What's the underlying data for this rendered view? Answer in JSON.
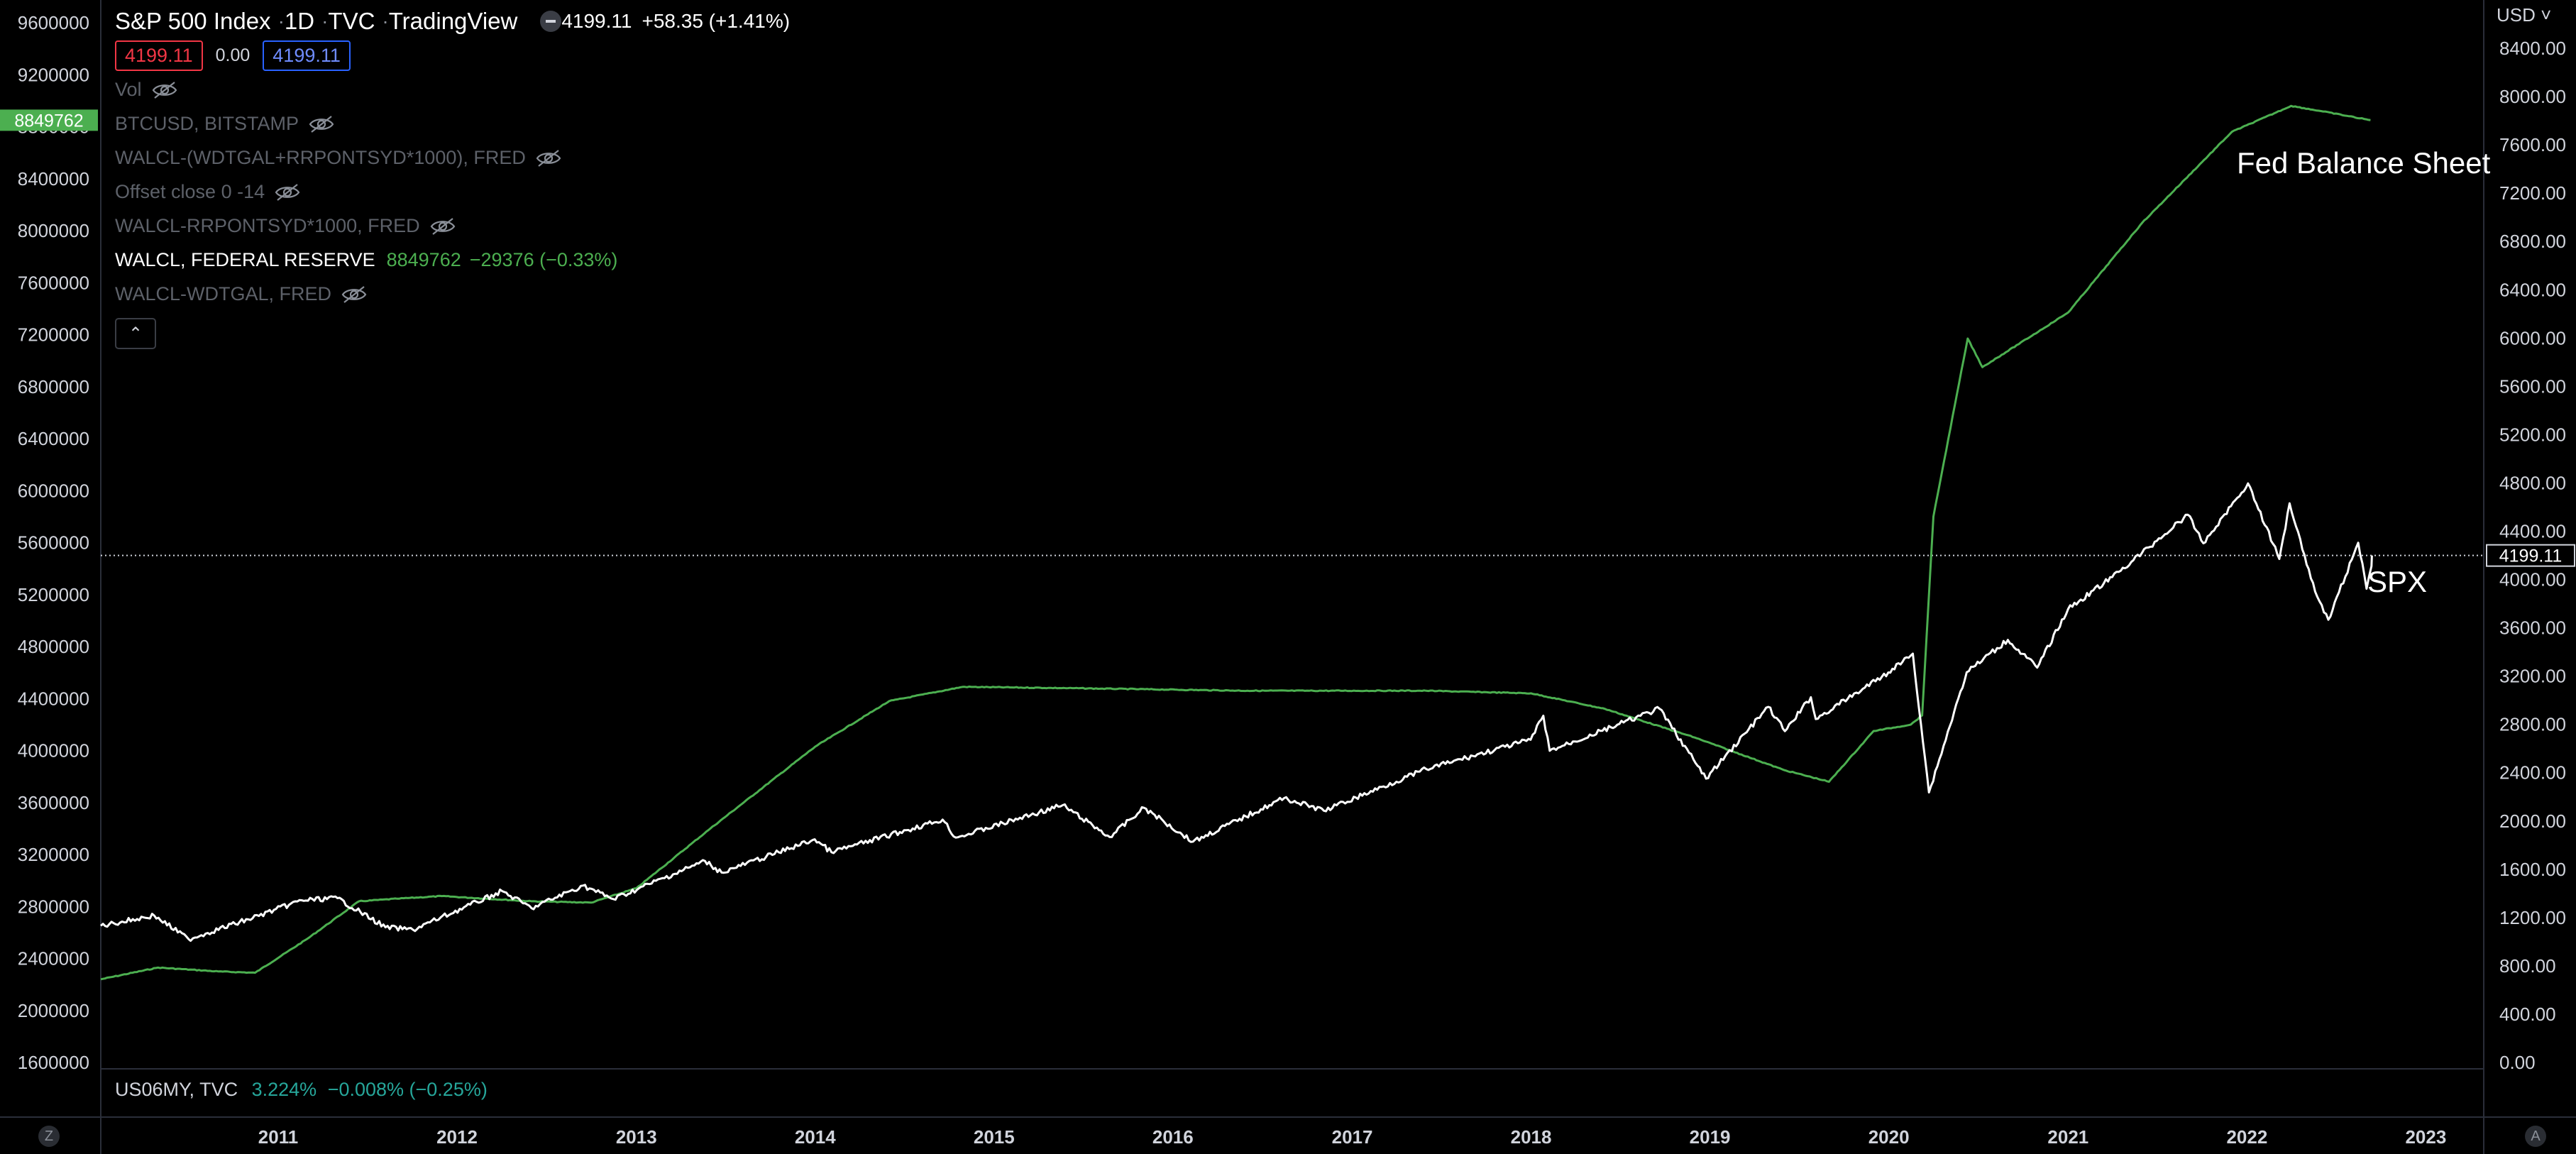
{
  "header": {
    "symbol": "S&P 500 Index",
    "interval": "1D",
    "exchange": "TVC",
    "source": "TradingView",
    "price": "4199.11",
    "change": "+58.35 (+1.41%)",
    "sell_price": "4199.11",
    "spread": "0.00",
    "buy_price": "4199.11",
    "currency": "USD"
  },
  "indicators": [
    {
      "label": "Vol",
      "hidden": true
    },
    {
      "label": "BTCUSD, BITSTAMP",
      "hidden": true
    },
    {
      "label": "WALCL-(WDTGAL+RRPONTSYD*1000), FRED",
      "hidden": true
    },
    {
      "label": "Offset close 0 -14",
      "hidden": true
    },
    {
      "label": "WALCL-RRPONTSYD*1000, FRED",
      "hidden": true
    },
    {
      "label": "WALCL, FEDERAL RESERVE",
      "hidden": false,
      "value": "8849762",
      "change": "−29376 (−0.33%)"
    },
    {
      "label": "WALCL-WDTGAL, FRED",
      "hidden": true
    }
  ],
  "sub_pane": {
    "label": "US06MY, TVC",
    "value": "3.224%",
    "change": "−0.008% (−0.25%)"
  },
  "annotations": {
    "fed": "Fed Balance Sheet",
    "spx": "SPX"
  },
  "corners": {
    "left": "Z",
    "right": "A"
  },
  "colors": {
    "background": "#000000",
    "fed_line": "#4caf50",
    "spx_line": "#ffffff",
    "text": "#d1d4dc",
    "muted": "#5d6169",
    "red": "#f23645",
    "blue": "#2962ff",
    "teal": "#26a69a"
  },
  "chart_data": {
    "type": "line",
    "x_axis": {
      "type": "time",
      "ticks": [
        "2011",
        "2012",
        "2013",
        "2014",
        "2015",
        "2016",
        "2017",
        "2018",
        "2019",
        "2020",
        "2021",
        "2022",
        "2023"
      ]
    },
    "y_left": {
      "range": [
        1600000,
        9600000
      ],
      "ticks": [
        "9600000",
        "9200000",
        "8800000",
        "8400000",
        "8000000",
        "7600000",
        "7200000",
        "6800000",
        "6400000",
        "6000000",
        "5600000",
        "5200000",
        "4800000",
        "4400000",
        "4000000",
        "3600000",
        "3200000",
        "2800000",
        "2400000",
        "2000000",
        "1600000"
      ],
      "last_value_label": "8849762"
    },
    "y_right": {
      "range": [
        0,
        8800
      ],
      "ticks": [
        "8400.00",
        "8000.00",
        "7600.00",
        "7200.00",
        "6800.00",
        "6400.00",
        "6000.00",
        "5600.00",
        "5200.00",
        "4800.00",
        "4400.00",
        "4000.00",
        "3600.00",
        "3200.00",
        "2800.00",
        "2400.00",
        "2000.00",
        "1600.00",
        "1200.00",
        "800.00",
        "400.00",
        "0.00"
      ],
      "last_value_label": "4199.11",
      "last_value": 4199.11
    },
    "series": [
      {
        "name": "WALCL, FEDERAL RESERVE",
        "axis": "left",
        "color": "#4caf50",
        "points": [
          [
            "2010-01-04",
            2240000
          ],
          [
            "2010-05-01",
            2330000
          ],
          [
            "2010-09-01",
            2300000
          ],
          [
            "2010-11-15",
            2290000
          ],
          [
            "2011-03-01",
            2550000
          ],
          [
            "2011-06-15",
            2840000
          ],
          [
            "2011-09-01",
            2860000
          ],
          [
            "2011-12-01",
            2880000
          ],
          [
            "2012-06-01",
            2840000
          ],
          [
            "2012-10-01",
            2830000
          ],
          [
            "2013-01-01",
            2940000
          ],
          [
            "2013-06-01",
            3400000
          ],
          [
            "2014-01-01",
            4030000
          ],
          [
            "2014-06-01",
            4380000
          ],
          [
            "2014-10-29",
            4490000
          ],
          [
            "2015-06-01",
            4480000
          ],
          [
            "2016-06-01",
            4460000
          ],
          [
            "2017-06-01",
            4460000
          ],
          [
            "2018-01-01",
            4440000
          ],
          [
            "2018-06-01",
            4320000
          ],
          [
            "2018-12-01",
            4100000
          ],
          [
            "2019-06-01",
            3850000
          ],
          [
            "2019-09-01",
            3760000
          ],
          [
            "2019-12-01",
            4150000
          ],
          [
            "2020-02-15",
            4200000
          ],
          [
            "2020-03-09",
            4270000
          ],
          [
            "2020-04-01",
            5800000
          ],
          [
            "2020-06-10",
            7170000
          ],
          [
            "2020-07-10",
            6950000
          ],
          [
            "2021-01-01",
            7370000
          ],
          [
            "2021-06-01",
            8060000
          ],
          [
            "2021-12-01",
            8760000
          ],
          [
            "2022-04-01",
            8960000
          ],
          [
            "2022-06-01",
            8920000
          ],
          [
            "2022-09-10",
            8850000
          ]
        ]
      },
      {
        "name": "SPX",
        "axis": "right",
        "color": "#ffffff",
        "points": [
          [
            "2010-01-04",
            1132
          ],
          [
            "2010-04-23",
            1217
          ],
          [
            "2010-07-02",
            1022
          ],
          [
            "2010-11-01",
            1185
          ],
          [
            "2011-02-18",
            1343
          ],
          [
            "2011-05-02",
            1361
          ],
          [
            "2011-08-08",
            1119
          ],
          [
            "2011-10-03",
            1099
          ],
          [
            "2012-04-02",
            1419
          ],
          [
            "2012-06-01",
            1278
          ],
          [
            "2012-09-14",
            1465
          ],
          [
            "2012-11-15",
            1353
          ],
          [
            "2013-05-21",
            1669
          ],
          [
            "2013-06-24",
            1573
          ],
          [
            "2013-12-31",
            1848
          ],
          [
            "2014-02-03",
            1742
          ],
          [
            "2014-09-18",
            2011
          ],
          [
            "2014-10-15",
            1862
          ],
          [
            "2015-05-21",
            2131
          ],
          [
            "2015-08-25",
            1867
          ],
          [
            "2015-11-03",
            2109
          ],
          [
            "2016-02-11",
            1829
          ],
          [
            "2016-08-15",
            2190
          ],
          [
            "2016-11-04",
            2085
          ],
          [
            "2017-06-01",
            2430
          ],
          [
            "2017-12-31",
            2673
          ],
          [
            "2018-01-26",
            2872
          ],
          [
            "2018-02-08",
            2581
          ],
          [
            "2018-09-20",
            2930
          ],
          [
            "2018-12-24",
            2351
          ],
          [
            "2019-04-30",
            2945
          ],
          [
            "2019-06-03",
            2744
          ],
          [
            "2019-07-26",
            3025
          ],
          [
            "2019-08-05",
            2844
          ],
          [
            "2019-12-31",
            3230
          ],
          [
            "2020-02-19",
            3386
          ],
          [
            "2020-03-23",
            2237
          ],
          [
            "2020-06-08",
            3232
          ],
          [
            "2020-08-31",
            3500
          ],
          [
            "2020-10-30",
            3270
          ],
          [
            "2021-01-01",
            3756
          ],
          [
            "2021-04-01",
            4020
          ],
          [
            "2021-07-01",
            4320
          ],
          [
            "2021-09-02",
            4537
          ],
          [
            "2021-10-04",
            4300
          ],
          [
            "2022-01-03",
            4796
          ],
          [
            "2022-03-08",
            4170
          ],
          [
            "2022-03-29",
            4631
          ],
          [
            "2022-05-20",
            3900
          ],
          [
            "2022-06-16",
            3667
          ],
          [
            "2022-08-16",
            4305
          ],
          [
            "2022-09-02",
            3924
          ],
          [
            "2022-09-12",
            4110
          ],
          [
            "2022-09-13",
            4199
          ]
        ]
      },
      {
        "name": "US06MY, TVC",
        "axis": "sub",
        "color": "#26a69a",
        "last_value": 3.224
      }
    ]
  }
}
